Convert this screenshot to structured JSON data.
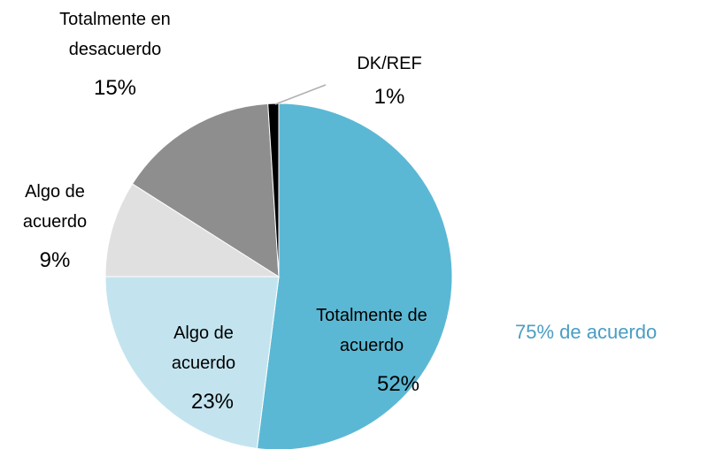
{
  "chart_data": {
    "type": "pie",
    "categories": [
      "Totalmente de acuerdo",
      "Algo de acuerdo",
      "Algo de acuerdo",
      "Totalmente en desacuerdo",
      "DK/REF"
    ],
    "values": [
      52,
      23,
      9,
      15,
      1
    ],
    "value_labels": [
      "52%",
      "23%",
      "9%",
      "15%",
      "1%"
    ],
    "colors": [
      "#5bb8d4",
      "#c3e4ef",
      "#e0e0e0",
      "#8e8e8e",
      "#000000"
    ],
    "annotation": "75% de acuerdo"
  }
}
